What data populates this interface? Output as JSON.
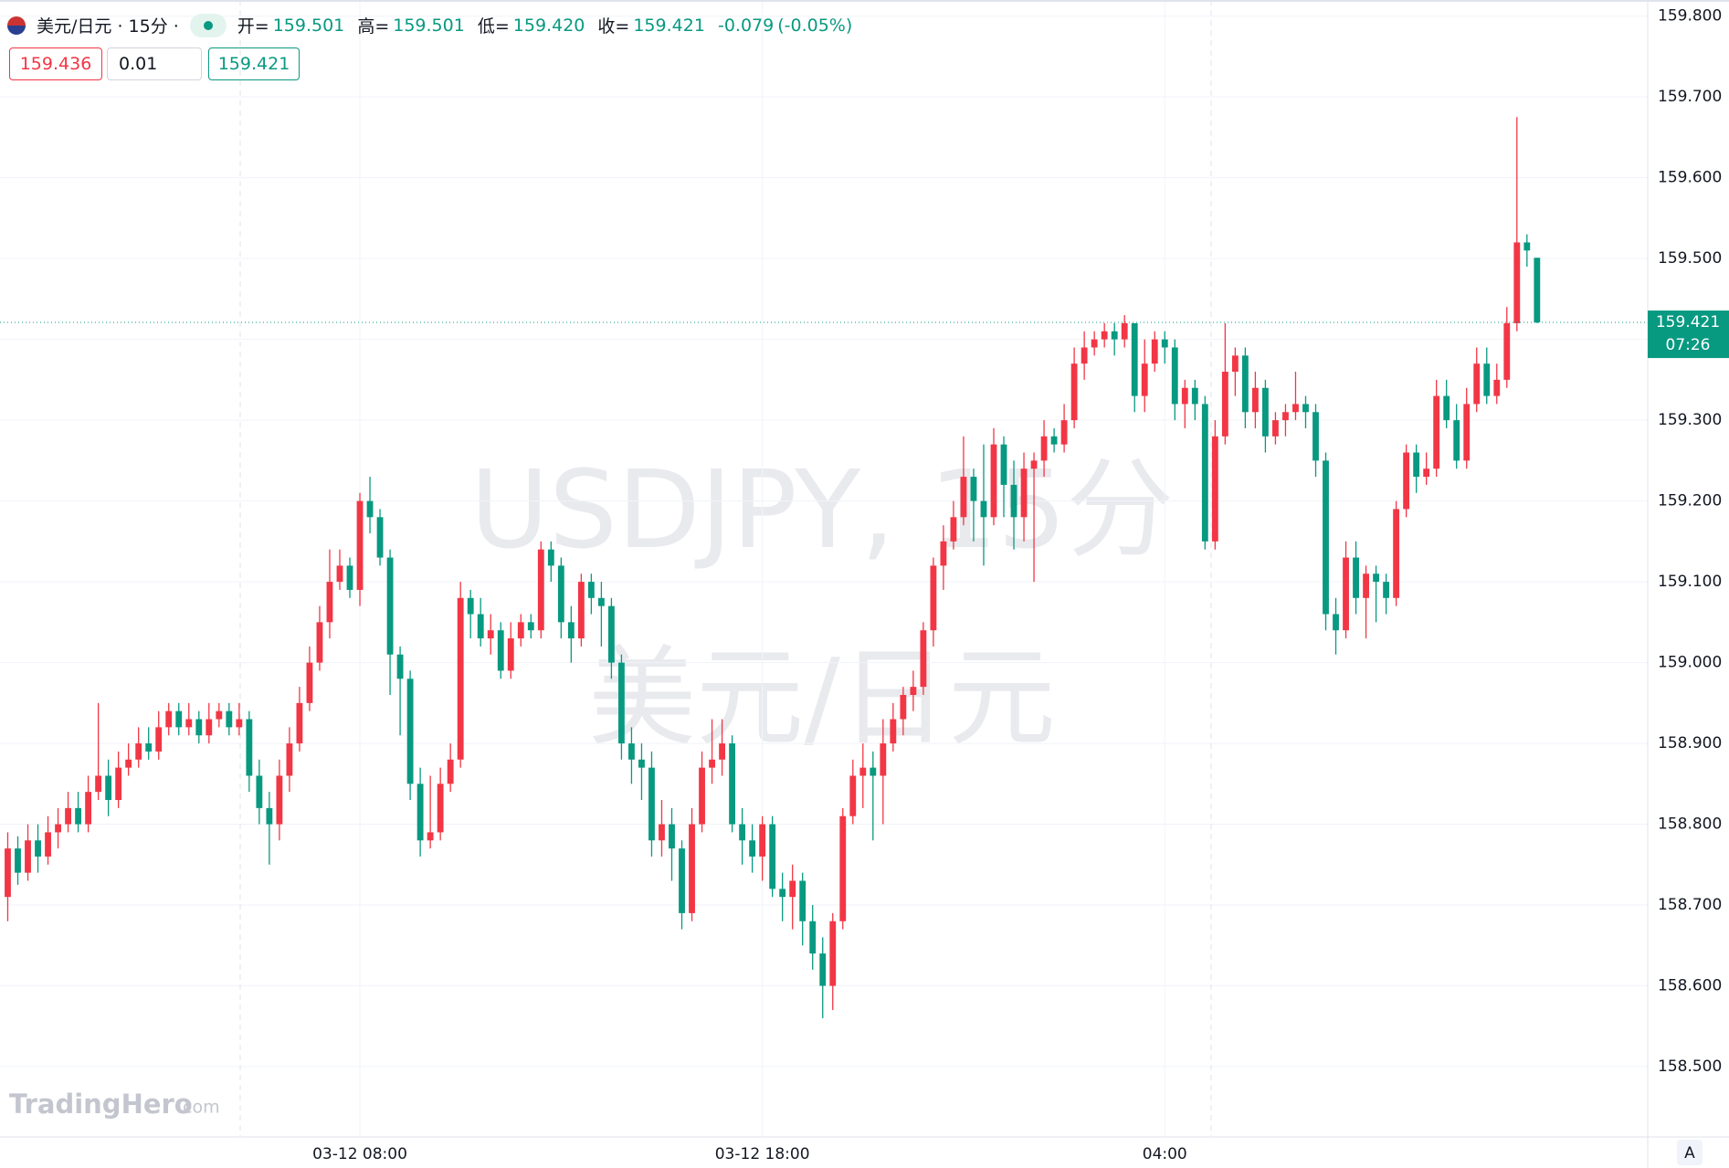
{
  "header": {
    "symbol": "美元/日元 · 15分 ·",
    "open_label": "开=",
    "open": "159.501",
    "high_label": "高=",
    "high": "159.501",
    "low_label": "低=",
    "low": "159.420",
    "close_label": "收=",
    "close": "159.421",
    "change": "-0.079",
    "change_pct": "(-0.05%)"
  },
  "order": {
    "sell": "159.436",
    "quantity": "0.01",
    "buy": "159.421"
  },
  "watermark": {
    "line1": "USDJPY, 15分",
    "line2": "美元/日元"
  },
  "logo": {
    "name": "TradingHero",
    "suffix": ".com"
  },
  "axis_button": "A",
  "chart_data": {
    "type": "candlestick",
    "up_color": "#f23645",
    "down_color": "#089981",
    "grid": true,
    "open": [
      158.71,
      158.77,
      158.74,
      158.78,
      158.76,
      158.79,
      158.8,
      158.82,
      158.8,
      158.84,
      158.86,
      158.83,
      158.87,
      158.88,
      158.9,
      158.89,
      158.92,
      158.94,
      158.92,
      158.93,
      158.91,
      158.93,
      158.94,
      158.92,
      158.93,
      158.86,
      158.82,
      158.8,
      158.86,
      158.9,
      158.95,
      159.0,
      159.05,
      159.1,
      159.12,
      159.09,
      159.2,
      159.18,
      159.13,
      159.01,
      158.98,
      158.85,
      158.78,
      158.79,
      158.85,
      158.88,
      159.08,
      159.06,
      159.03,
      159.04,
      158.99,
      159.03,
      159.05,
      159.04,
      159.14,
      159.12,
      159.05,
      159.03,
      159.1,
      159.08,
      159.07,
      159.0,
      158.9,
      158.88,
      158.87,
      158.78,
      158.8,
      158.77,
      158.69,
      158.8,
      158.87,
      158.88,
      158.9,
      158.8,
      158.78,
      158.76,
      158.8,
      158.72,
      158.71,
      158.73,
      158.68,
      158.64,
      158.6,
      158.68,
      158.81,
      158.86,
      158.87,
      158.86,
      158.9,
      158.93,
      158.96,
      158.97,
      159.04,
      159.12,
      159.15,
      159.18,
      159.23,
      159.2,
      159.18,
      159.27,
      159.22,
      159.18,
      159.24,
      159.25,
      159.28,
      159.27,
      159.3,
      159.37,
      159.39,
      159.4,
      159.41,
      159.4,
      159.42,
      159.33,
      159.37,
      159.4,
      159.39,
      159.32,
      159.34,
      159.32,
      159.15,
      159.28,
      159.36,
      159.38,
      159.31,
      159.34,
      159.28,
      159.3,
      159.31,
      159.32,
      159.31,
      159.25,
      159.06,
      159.04,
      159.13,
      159.08,
      159.11,
      159.1,
      159.08,
      159.19,
      159.26,
      159.23,
      159.24,
      159.33,
      159.3,
      159.25,
      159.32,
      159.37,
      159.33,
      159.35,
      159.42,
      159.52,
      159.501
    ],
    "high": [
      158.79,
      158.785,
      158.8,
      158.8,
      158.81,
      158.82,
      158.84,
      158.84,
      158.86,
      158.95,
      158.88,
      158.89,
      158.9,
      158.92,
      158.92,
      158.94,
      158.95,
      158.95,
      158.95,
      158.94,
      158.95,
      158.95,
      158.95,
      158.95,
      158.94,
      158.88,
      158.84,
      158.88,
      158.92,
      158.97,
      159.02,
      159.07,
      159.14,
      159.14,
      159.13,
      159.21,
      159.23,
      159.19,
      159.14,
      159.02,
      158.99,
      158.87,
      158.86,
      158.87,
      158.9,
      159.1,
      159.09,
      159.08,
      159.06,
      159.05,
      159.05,
      159.06,
      159.06,
      159.15,
      159.15,
      159.13,
      159.07,
      159.11,
      159.11,
      159.1,
      159.08,
      159.01,
      158.92,
      158.9,
      158.89,
      158.83,
      158.82,
      158.78,
      158.82,
      158.89,
      158.93,
      158.93,
      158.91,
      158.82,
      158.8,
      158.81,
      158.81,
      158.74,
      158.75,
      158.74,
      158.7,
      158.66,
      158.69,
      158.82,
      158.88,
      158.9,
      158.89,
      158.93,
      158.95,
      158.97,
      158.99,
      159.05,
      159.13,
      159.17,
      159.2,
      159.28,
      159.24,
      159.27,
      159.29,
      159.28,
      159.25,
      159.26,
      159.26,
      159.3,
      159.29,
      159.32,
      159.39,
      159.41,
      159.41,
      159.42,
      159.42,
      159.43,
      159.42,
      159.4,
      159.41,
      159.41,
      159.4,
      159.35,
      159.35,
      159.33,
      159.3,
      159.42,
      159.39,
      159.39,
      159.36,
      159.35,
      159.31,
      159.32,
      159.36,
      159.33,
      159.32,
      159.26,
      159.08,
      159.15,
      159.15,
      159.12,
      159.12,
      159.11,
      159.2,
      159.27,
      159.27,
      159.26,
      159.35,
      159.35,
      159.32,
      159.34,
      159.39,
      159.39,
      159.37,
      159.44,
      159.675,
      159.53,
      159.501
    ],
    "low": [
      158.68,
      158.725,
      158.73,
      158.74,
      158.75,
      158.77,
      158.79,
      158.79,
      158.79,
      158.83,
      158.81,
      158.82,
      158.86,
      158.87,
      158.88,
      158.88,
      158.91,
      158.91,
      158.91,
      158.9,
      158.9,
      158.92,
      158.91,
      158.91,
      158.84,
      158.8,
      158.75,
      158.78,
      158.84,
      158.89,
      158.94,
      158.99,
      159.03,
      159.09,
      159.08,
      159.07,
      159.16,
      159.12,
      158.96,
      158.91,
      158.83,
      158.76,
      158.77,
      158.78,
      158.84,
      158.87,
      159.03,
      159.02,
      159.01,
      158.98,
      158.98,
      159.02,
      159.03,
      159.03,
      159.1,
      159.03,
      159.0,
      159.02,
      159.06,
      159.02,
      158.98,
      158.88,
      158.85,
      158.83,
      158.76,
      158.76,
      158.73,
      158.67,
      158.68,
      158.79,
      158.85,
      158.86,
      158.79,
      158.75,
      158.74,
      158.73,
      158.71,
      158.68,
      158.67,
      158.65,
      158.62,
      158.56,
      158.57,
      158.67,
      158.8,
      158.82,
      158.78,
      158.8,
      158.89,
      158.91,
      158.94,
      158.96,
      159.02,
      159.09,
      159.14,
      159.17,
      159.15,
      159.12,
      159.17,
      159.18,
      159.14,
      159.15,
      159.1,
      159.23,
      159.26,
      159.26,
      159.29,
      159.35,
      159.38,
      159.39,
      159.38,
      159.39,
      159.31,
      159.31,
      159.36,
      159.37,
      159.3,
      159.29,
      159.3,
      159.14,
      159.14,
      159.27,
      159.33,
      159.29,
      159.29,
      159.26,
      159.27,
      159.28,
      159.3,
      159.29,
      159.23,
      159.04,
      159.01,
      159.03,
      159.06,
      159.03,
      159.05,
      159.06,
      159.07,
      159.18,
      159.21,
      159.22,
      159.23,
      159.29,
      159.24,
      159.24,
      159.31,
      159.32,
      159.32,
      159.34,
      159.41,
      159.49,
      159.42
    ],
    "close": [
      158.77,
      158.74,
      158.78,
      158.76,
      158.79,
      158.8,
      158.82,
      158.8,
      158.84,
      158.86,
      158.83,
      158.87,
      158.88,
      158.9,
      158.89,
      158.92,
      158.94,
      158.92,
      158.93,
      158.91,
      158.93,
      158.94,
      158.92,
      158.93,
      158.86,
      158.82,
      158.8,
      158.86,
      158.9,
      158.95,
      159.0,
      159.05,
      159.1,
      159.12,
      159.09,
      159.2,
      159.18,
      159.13,
      159.01,
      158.98,
      158.85,
      158.78,
      158.79,
      158.85,
      158.88,
      159.08,
      159.06,
      159.03,
      159.04,
      158.99,
      159.03,
      159.05,
      159.04,
      159.14,
      159.12,
      159.05,
      159.03,
      159.1,
      159.08,
      159.07,
      159.0,
      158.9,
      158.88,
      158.87,
      158.78,
      158.8,
      158.77,
      158.69,
      158.8,
      158.87,
      158.88,
      158.9,
      158.8,
      158.78,
      158.76,
      158.8,
      158.72,
      158.71,
      158.73,
      158.68,
      158.64,
      158.6,
      158.68,
      158.81,
      158.86,
      158.87,
      158.86,
      158.9,
      158.93,
      158.96,
      158.97,
      159.04,
      159.12,
      159.15,
      159.18,
      159.23,
      159.2,
      159.18,
      159.27,
      159.22,
      159.18,
      159.24,
      159.25,
      159.28,
      159.27,
      159.3,
      159.37,
      159.39,
      159.4,
      159.41,
      159.4,
      159.42,
      159.33,
      159.37,
      159.4,
      159.39,
      159.32,
      159.34,
      159.32,
      159.15,
      159.28,
      159.36,
      159.38,
      159.31,
      159.34,
      159.28,
      159.3,
      159.31,
      159.32,
      159.31,
      159.25,
      159.06,
      159.04,
      159.13,
      159.08,
      159.11,
      159.1,
      159.08,
      159.19,
      159.26,
      159.23,
      159.24,
      159.33,
      159.3,
      159.25,
      159.32,
      159.37,
      159.33,
      159.35,
      159.42,
      159.52,
      159.51,
      159.421
    ],
    "xlim": [
      -0.77,
      163
    ],
    "xticks": [
      {
        "value": 35,
        "label": "03-12 08:00"
      },
      {
        "value": 75,
        "label": "03-12 18:00"
      },
      {
        "value": 115,
        "label": "04:00"
      }
    ],
    "ylim": [
      158.413,
      159.82
    ],
    "yticks": [
      {
        "value": 158.5,
        "label": "158.500"
      },
      {
        "value": 158.6,
        "label": "158.600"
      },
      {
        "value": 158.7,
        "label": "158.700"
      },
      {
        "value": 158.8,
        "label": "158.800"
      },
      {
        "value": 158.9,
        "label": "158.900"
      },
      {
        "value": 159.0,
        "label": "159.000"
      },
      {
        "value": 159.1,
        "label": "159.100"
      },
      {
        "value": 159.2,
        "label": "159.200"
      },
      {
        "value": 159.3,
        "label": "159.300"
      },
      {
        "value": 159.4,
        "label": "159.400"
      },
      {
        "value": 159.5,
        "label": "159.500"
      },
      {
        "value": 159.6,
        "label": "159.600"
      },
      {
        "value": 159.7,
        "label": "159.700"
      },
      {
        "value": 159.8,
        "label": "159.800"
      }
    ],
    "last_price": 159.421,
    "countdown": "07:26"
  }
}
